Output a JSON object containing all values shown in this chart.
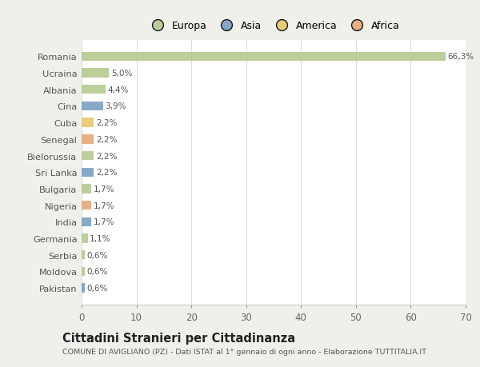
{
  "countries": [
    "Romania",
    "Ucraina",
    "Albania",
    "Cina",
    "Cuba",
    "Senegal",
    "Bielorussia",
    "Sri Lanka",
    "Bulgaria",
    "Nigeria",
    "India",
    "Germania",
    "Serbia",
    "Moldova",
    "Pakistan"
  ],
  "values": [
    66.3,
    5.0,
    4.4,
    3.9,
    2.2,
    2.2,
    2.2,
    2.2,
    1.7,
    1.7,
    1.7,
    1.1,
    0.6,
    0.6,
    0.6
  ],
  "labels": [
    "66,3%",
    "5,0%",
    "4,4%",
    "3,9%",
    "2,2%",
    "2,2%",
    "2,2%",
    "2,2%",
    "1,7%",
    "1,7%",
    "1,7%",
    "1,1%",
    "0,6%",
    "0,6%",
    "0,6%"
  ],
  "continents": [
    "Europa",
    "Europa",
    "Europa",
    "Asia",
    "America",
    "Africa",
    "Europa",
    "Asia",
    "Europa",
    "Africa",
    "Asia",
    "Europa",
    "Europa",
    "Europa",
    "Asia"
  ],
  "colors": {
    "Europa": "#b5c98e",
    "Asia": "#7a9fc4",
    "America": "#e8c96b",
    "Africa": "#e8a878"
  },
  "legend_order": [
    "Europa",
    "Asia",
    "America",
    "Africa"
  ],
  "title": "Cittadini Stranieri per Cittadinanza",
  "subtitle": "COMUNE DI AVIGLIANO (PZ) - Dati ISTAT al 1° gennaio di ogni anno - Elaborazione TUTTITALIA.IT",
  "xlim": [
    0,
    70
  ],
  "xticks": [
    0,
    10,
    20,
    30,
    40,
    50,
    60,
    70
  ],
  "bg_color": "#f0f0eb",
  "plot_bg_color": "#ffffff",
  "grid_color": "#dddddd"
}
